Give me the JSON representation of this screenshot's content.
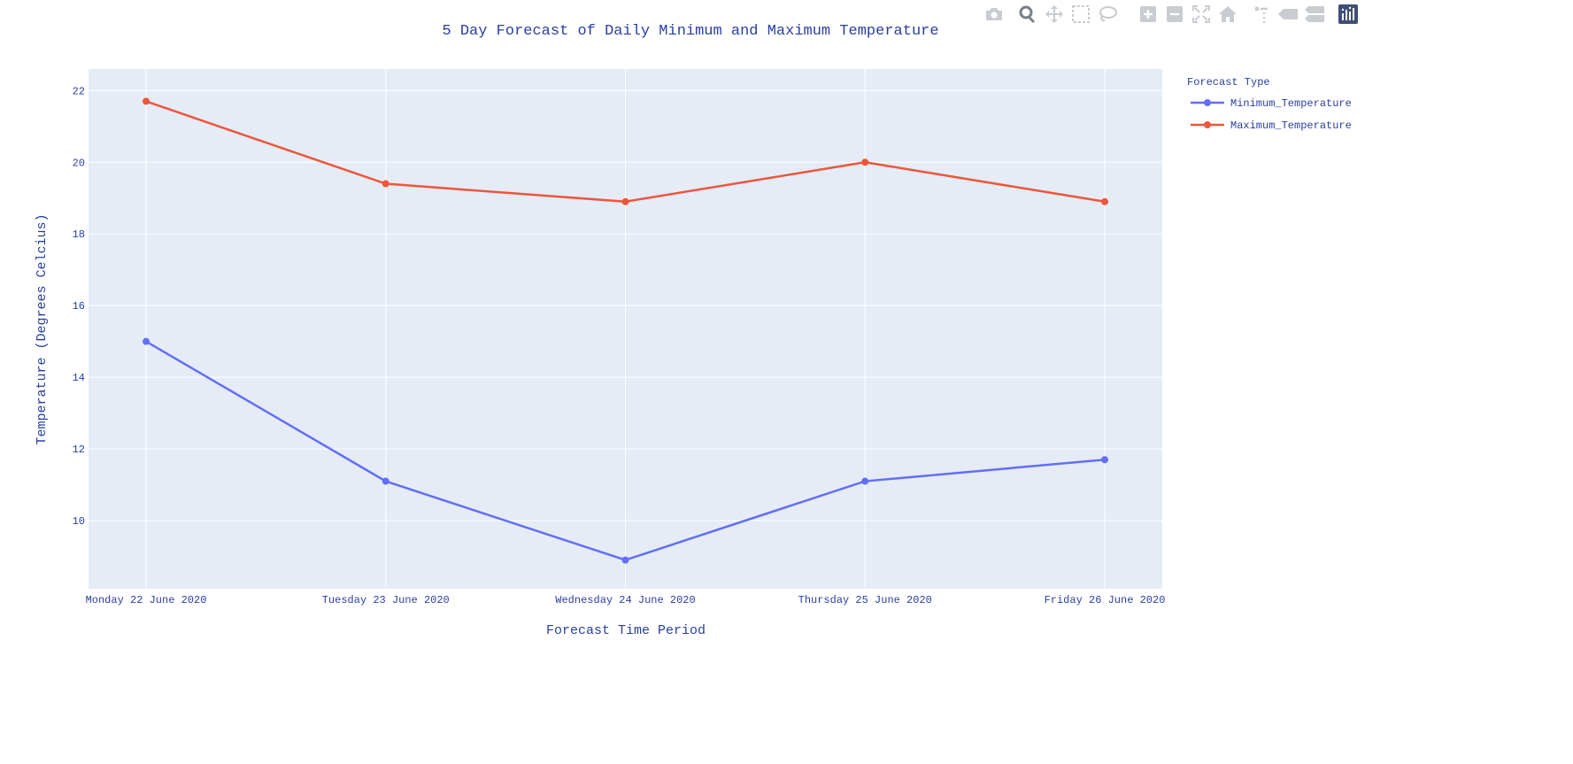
{
  "modebar": {
    "icons": [
      "camera-icon",
      "zoom-icon",
      "pan-icon",
      "box-select-icon",
      "lasso-select-icon",
      "zoom-in-icon",
      "zoom-out-icon",
      "autoscale-icon",
      "reset-axes-icon",
      "spike-lines-icon",
      "hover-closest-icon",
      "hover-compare-icon",
      "plotly-logo-icon"
    ],
    "active": "zoom-icon"
  },
  "colors": {
    "plot_bg": "#e5ecf6",
    "grid": "#ffffff",
    "text": "#2a3f9f",
    "min_series": "#636efa",
    "max_series": "#ef553b",
    "icon": "#c9ccd1",
    "icon_active": "#7a7f87"
  },
  "chart_data": {
    "type": "line",
    "title": "5 Day Forecast of Daily Minimum and Maximum Temperature",
    "xlabel": "Forecast Time Period",
    "ylabel": "Temperature (Degrees Celcius)",
    "categories": [
      "Monday 22 June 2020",
      "Tuesday 23 June 2020",
      "Wednesday 24 June 2020",
      "Thursday 25 June 2020",
      "Friday 26 June 2020"
    ],
    "ylim": [
      8.1,
      22.6
    ],
    "yticks": [
      10,
      12,
      14,
      16,
      18,
      20,
      22
    ],
    "grid": true,
    "legend_title": "Forecast Type",
    "legend_position": "top-right outside",
    "series": [
      {
        "name": "Minimum_Temperature",
        "values": [
          15,
          11.1,
          8.9,
          11.1,
          11.7
        ],
        "color": "#636efa"
      },
      {
        "name": "Maximum_Temperature",
        "values": [
          21.7,
          19.4,
          18.9,
          20,
          18.9
        ],
        "color": "#ef553b"
      }
    ]
  }
}
